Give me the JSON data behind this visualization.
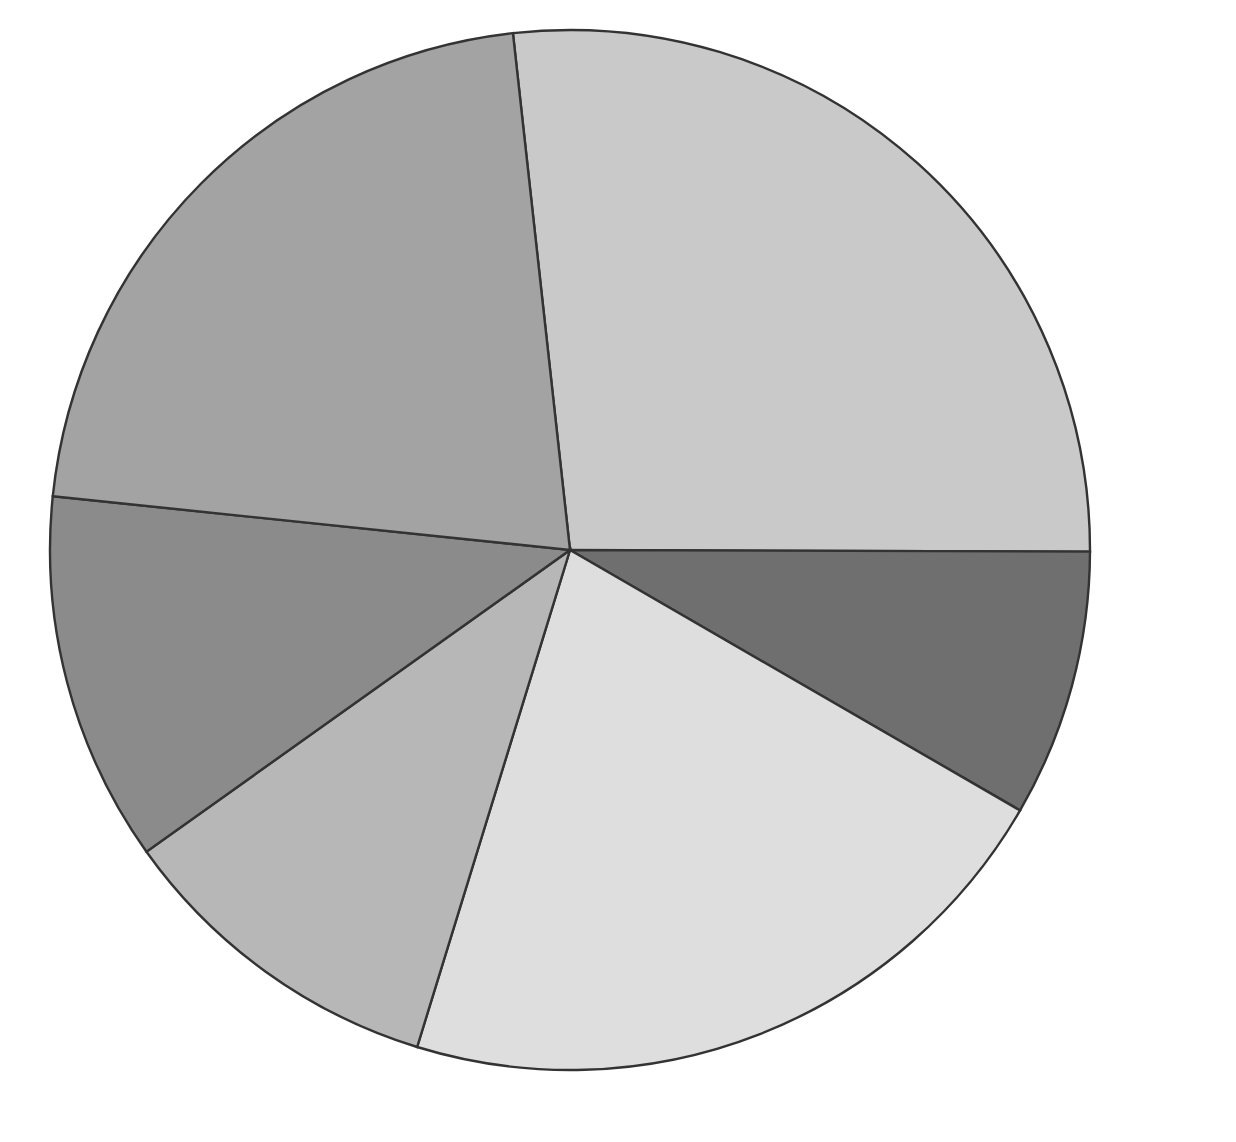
{
  "chart_data": {
    "type": "pie",
    "categories": [
      null,
      null,
      null,
      null,
      null,
      null
    ],
    "values": [
      26.8,
      8.3,
      21.4,
      10.4,
      11.5,
      21.6
    ],
    "colors": [
      "#c9c9c9",
      "#6f6f6f",
      "#dedede",
      "#b7b7b7",
      "#8b8b8b",
      "#a3a3a3"
    ],
    "legend": false
  }
}
